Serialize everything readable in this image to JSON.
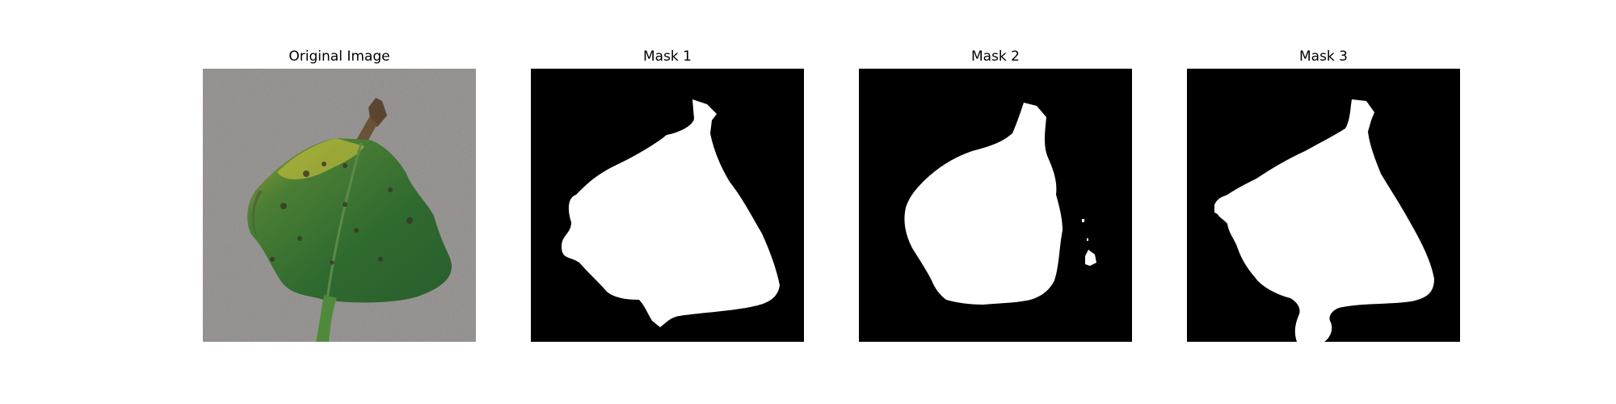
{
  "panels": [
    {
      "title": "Original Image"
    },
    {
      "title": "Mask 1"
    },
    {
      "title": "Mask 2"
    },
    {
      "title": "Mask 3"
    }
  ],
  "colors": {
    "background": "#ffffff",
    "mask_background": "#000000",
    "mask_foreground": "#ffffff",
    "ground_gray": "#8f8c8a",
    "leaf_green": "#2f6b30",
    "leaf_yellow": "#b5b53a",
    "stem_brown": "#5a4630"
  }
}
